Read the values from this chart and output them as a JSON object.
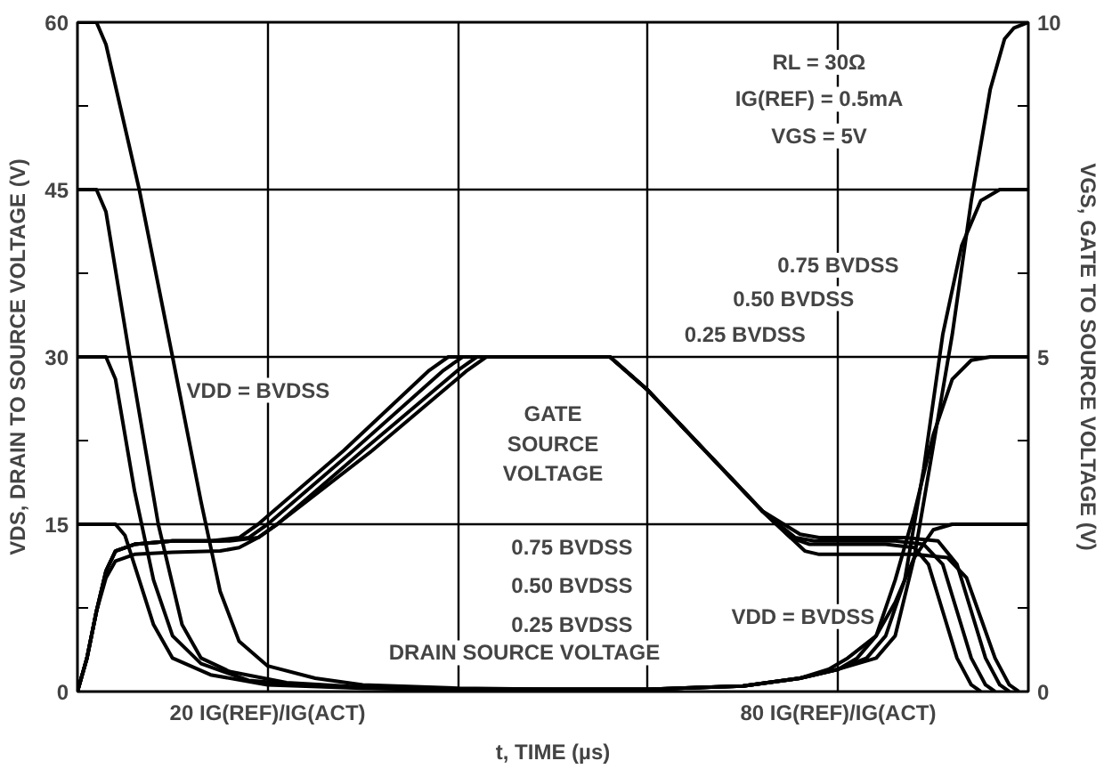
{
  "chart_data": {
    "type": "line",
    "xlabel": "t, TIME (µs)",
    "ylabel": "VDS, DRAIN TO SOURCE VOLTAGE (V)",
    "y2label": "VGS, GATE TO SOURCE VOLTAGE (V)",
    "xlim": [
      0,
      100
    ],
    "xticks": [
      {
        "value": 20,
        "label": "20 IG(REF)/IG(ACT)"
      },
      {
        "value": 40,
        "label": null
      },
      {
        "value": 60,
        "label": null
      },
      {
        "value": 80,
        "label": "80 IG(REF)/IG(ACT)"
      }
    ],
    "ylim": [
      0,
      60
    ],
    "yticks": [
      0,
      {
        "value": 7.5,
        "label": null
      },
      15,
      {
        "value": 22.5,
        "label": null
      },
      30,
      {
        "value": 37.5,
        "label": null
      },
      45,
      {
        "value": 52.5,
        "label": null
      },
      60
    ],
    "y2lim": [
      0,
      10
    ],
    "y2ticks": [
      0,
      {
        "value": 1.25,
        "label": null
      },
      {
        "value": 2.5,
        "label": null
      },
      {
        "value": 3.75,
        "label": null
      },
      5,
      {
        "value": 6.25,
        "label": null
      },
      {
        "value": 7.5,
        "label": null
      },
      {
        "value": 8.75,
        "label": null
      },
      10
    ],
    "grid": true,
    "line_style": "solid",
    "series": [
      {
        "color": "#000000",
        "x": [
          0,
          2,
          3,
          6.5,
          10,
          13,
          15,
          17,
          20,
          25,
          30,
          40,
          50,
          60,
          70,
          76,
          80,
          84,
          86,
          88,
          90,
          92,
          94,
          96,
          97.5,
          98.5,
          100
        ],
        "values": [
          60,
          60,
          58,
          45,
          30,
          17,
          9,
          4.5,
          2.3,
          1.2,
          0.6,
          0.3,
          0.2,
          0.2,
          0.5,
          1.2,
          2,
          3,
          5,
          12,
          22,
          32,
          44,
          54,
          58.5,
          59.5,
          60
        ]
      },
      {
        "color": "#000000",
        "x": [
          0,
          2,
          3,
          5.5,
          8.5,
          11,
          13,
          16,
          22,
          30,
          40,
          50,
          60,
          70,
          76,
          80,
          83,
          85,
          87,
          89,
          91,
          93,
          95,
          97,
          100
        ],
        "values": [
          45,
          45,
          43,
          30,
          15,
          6,
          3,
          1.8,
          0.8,
          0.4,
          0.2,
          0.2,
          0.2,
          0.5,
          1.2,
          2,
          3,
          5,
          10,
          20,
          32,
          40,
          44,
          45,
          45
        ]
      },
      {
        "color": "#000000",
        "x": [
          0,
          3,
          4,
          6,
          8,
          10,
          13,
          18,
          25,
          35,
          50,
          60,
          70,
          76,
          80,
          82,
          84,
          86,
          88,
          90,
          92,
          94,
          96,
          100
        ],
        "values": [
          30,
          30,
          28,
          18,
          10,
          5,
          2.5,
          1,
          0.5,
          0.2,
          0.2,
          0.2,
          0.5,
          1.2,
          2,
          3,
          5,
          10,
          16,
          23,
          28,
          29.7,
          30,
          30
        ]
      },
      {
        "color": "#000000",
        "x": [
          0,
          4,
          5,
          6.5,
          8,
          10,
          14,
          20,
          30,
          40,
          50,
          60,
          70,
          76,
          79,
          81,
          84,
          86,
          88,
          90,
          92,
          100
        ],
        "values": [
          15,
          15,
          14,
          10,
          6,
          3,
          1.5,
          0.6,
          0.3,
          0.2,
          0.2,
          0.2,
          0.5,
          1.2,
          2,
          3,
          5,
          8,
          12,
          14.5,
          15,
          15
        ]
      },
      {
        "color": "#000000",
        "axis": "y2",
        "x": [
          0,
          1,
          2,
          3,
          4,
          6,
          10,
          14,
          17,
          19,
          28,
          37,
          39,
          56,
          60,
          66,
          72,
          75,
          77,
          85,
          88,
          89.5,
          91,
          92.5,
          94,
          95
        ],
        "values": [
          0,
          0.5,
          1.2,
          1.8,
          2.1,
          2.2,
          2.25,
          2.25,
          2.3,
          2.5,
          3.6,
          4.8,
          5,
          5,
          4.5,
          3.6,
          2.7,
          2.3,
          2.2,
          2.2,
          2.15,
          1.9,
          1.2,
          0.5,
          0.1,
          0
        ]
      },
      {
        "color": "#000000",
        "axis": "y2",
        "x": [
          0,
          1,
          2,
          3,
          4,
          6,
          10,
          15,
          18,
          20,
          29,
          38.5,
          40.5,
          56,
          60,
          66,
          72,
          75.5,
          77.5,
          86,
          89,
          91,
          92.5,
          94,
          95.5,
          96.5
        ],
        "values": [
          0,
          0.5,
          1.2,
          1.8,
          2.1,
          2.2,
          2.25,
          2.25,
          2.3,
          2.5,
          3.6,
          4.8,
          5,
          5,
          4.5,
          3.6,
          2.7,
          2.3,
          2.25,
          2.25,
          2.2,
          1.9,
          1.2,
          0.5,
          0.1,
          0
        ]
      },
      {
        "color": "#000000",
        "axis": "y2",
        "x": [
          0,
          1,
          2,
          3,
          4,
          6,
          10,
          16,
          19,
          21,
          30,
          40,
          42,
          56,
          60,
          66,
          72,
          76,
          78,
          87,
          90.5,
          92.5,
          94,
          95.5,
          97,
          98
        ],
        "values": [
          0,
          0.5,
          1.2,
          1.8,
          2.1,
          2.2,
          2.25,
          2.25,
          2.3,
          2.5,
          3.6,
          4.8,
          5,
          5,
          4.5,
          3.6,
          2.7,
          2.35,
          2.3,
          2.3,
          2.25,
          1.9,
          1.2,
          0.5,
          0.1,
          0
        ]
      },
      {
        "color": "#000000",
        "axis": "y2",
        "x": [
          0,
          1,
          2,
          3,
          4,
          6,
          10,
          15,
          17,
          19,
          21,
          31,
          41,
          43,
          56,
          60,
          66,
          72,
          76.5,
          78,
          88,
          91.5,
          93.5,
          95,
          96.5,
          98,
          99
        ],
        "values": [
          0,
          0.5,
          1.2,
          1.7,
          1.95,
          2.05,
          2.08,
          2.1,
          2.15,
          2.3,
          2.5,
          3.6,
          4.8,
          5,
          5,
          4.5,
          3.6,
          2.7,
          2.1,
          2.05,
          2.05,
          2,
          1.7,
          1.1,
          0.5,
          0.1,
          0
        ]
      }
    ],
    "annotations": [
      "RL = 30Ω",
      "IG(REF) = 0.5mA",
      "VGS = 5V",
      "VDD = BVDSS",
      "GATE\nSOURCE\nVOLTAGE",
      "0.75 BVDSS",
      "0.50 BVDSS",
      "0.25 BVDSS",
      "DRAIN SOURCE VOLTAGE",
      "0.75 BVDSS",
      "0.50 BVDSS",
      "0.25 BVDSS",
      "VDD = BVDSS"
    ]
  }
}
